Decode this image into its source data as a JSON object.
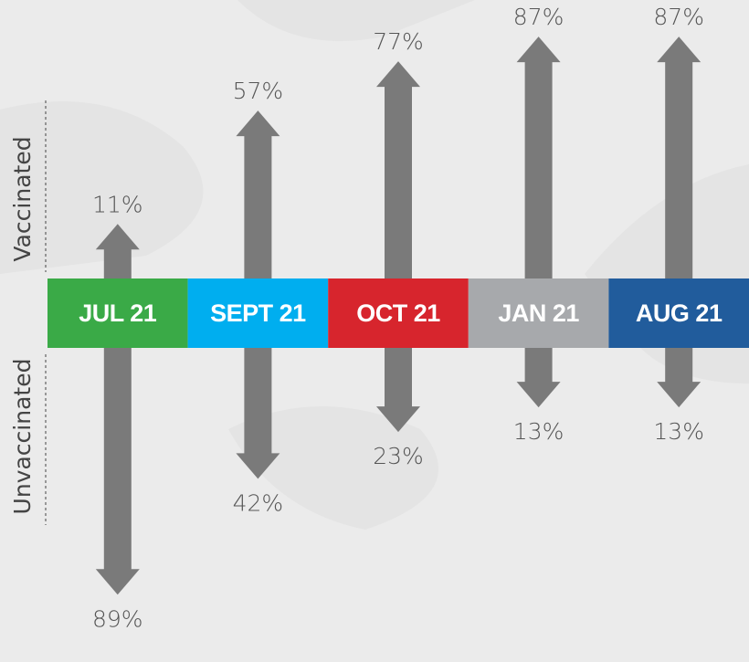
{
  "chart_data": {
    "type": "arrow",
    "categories": [
      "JUL 21",
      "SEPT 21",
      "OCT 21",
      "JAN 21",
      "AUG 21"
    ],
    "category_colors": [
      "#3aaa47",
      "#00aeef",
      "#d7252d",
      "#a7a9ac",
      "#215c9c"
    ],
    "color": "#7a7a7a",
    "series": [
      {
        "name": "Vaccinated",
        "values": [
          11,
          57,
          77,
          87,
          87
        ],
        "value_labels": [
          "11%",
          "57%",
          "77%",
          "87%",
          "87%"
        ]
      },
      {
        "name": "Unvaccinated",
        "values": [
          89,
          42,
          23,
          13,
          13
        ],
        "value_labels": [
          "89%",
          "42%",
          "23%",
          "13%",
          "13%"
        ]
      }
    ]
  }
}
